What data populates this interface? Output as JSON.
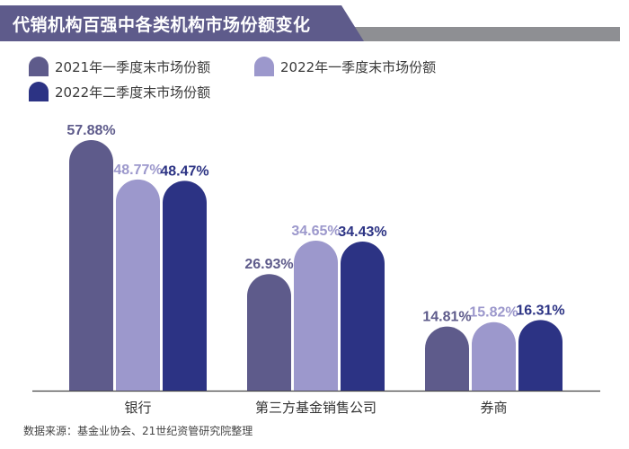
{
  "chart_data": {
    "type": "bar",
    "title": "代销机构百强中各类机构市场份额变化",
    "categories": [
      "银行",
      "第三方基金销售公司",
      "券商"
    ],
    "series": [
      {
        "name": "2021年一季度末市场份额",
        "values": [
          57.88,
          26.93,
          14.81
        ],
        "labels": [
          "57.88%",
          "26.93%",
          "14.81%"
        ],
        "color": "#5e5b8b"
      },
      {
        "name": "2022年一季度末市场份额",
        "values": [
          48.77,
          34.65,
          15.82
        ],
        "labels": [
          "48.77%",
          "34.65%",
          "15.82%"
        ],
        "color": "#9c98cc"
      },
      {
        "name": "2022年二季度末市场份额",
        "values": [
          48.47,
          34.43,
          16.31
        ],
        "labels": [
          "48.47%",
          "34.43%",
          "16.31%"
        ],
        "color": "#2c3384"
      }
    ],
    "ylim": [
      0,
      60
    ],
    "grid": false,
    "legend_position": "top-left",
    "source": "数据来源：基金业协会、21世纪资管研究院整理"
  }
}
